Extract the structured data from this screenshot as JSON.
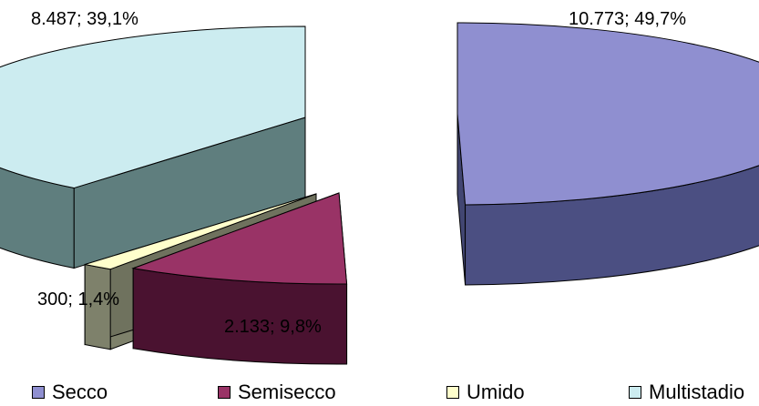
{
  "chart_data": {
    "type": "pie",
    "categories": [
      "Secco",
      "Semisecco",
      "Umido",
      "Multistadio"
    ],
    "values": [
      10773,
      2133,
      300,
      8487
    ],
    "percentages": [
      49.7,
      9.8,
      1.4,
      39.1
    ],
    "labels": [
      "10.773; 49,7%",
      "2.133; 9,8%",
      "300; 1,4%",
      "8.487; 39,1%"
    ],
    "legend_position": "bottom",
    "colors": {
      "Secco": "#8f8fd0",
      "Semisecco": "#993366",
      "Umido": "#ffffcc",
      "Multistadio": "#ccecf0"
    }
  }
}
